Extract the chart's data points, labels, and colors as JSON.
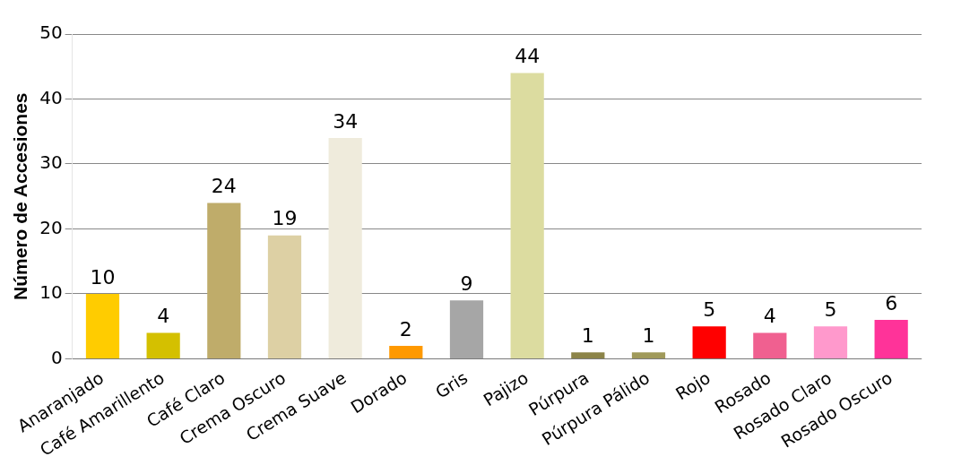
{
  "chart_data": {
    "type": "bar",
    "ylabel": "Número de Accesiones",
    "categories": [
      "Anaranjado",
      "Café Amarillento",
      "Café Claro",
      "Crema Oscuro",
      "Crema Suave",
      "Dorado",
      "Gris",
      "Pajizo",
      "Púrpura",
      "Púrpura Pálido",
      "Rojo",
      "Rosado",
      "Rosado Claro",
      "Rosado Oscuro"
    ],
    "values": [
      10,
      4,
      24,
      19,
      34,
      2,
      9,
      44,
      1,
      1,
      5,
      4,
      5,
      6
    ],
    "colors": [
      "#ffcc00",
      "#d4c000",
      "#bfac6a",
      "#ddd0a4",
      "#efebdc",
      "#ff9900",
      "#a6a6a6",
      "#dcdca0",
      "#8c8448",
      "#a09a5a",
      "#ff0000",
      "#f06090",
      "#ff99cc",
      "#ff3399"
    ],
    "ylim": [
      0,
      50
    ],
    "yticks": [
      0,
      10,
      20,
      30,
      40,
      50
    ],
    "grid": "y",
    "data_labels": true,
    "legend": false
  }
}
